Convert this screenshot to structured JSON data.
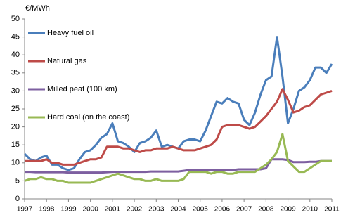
{
  "chart_data": {
    "type": "line",
    "y_label": "€/MWh",
    "x": [
      1997,
      1997.25,
      1997.5,
      1997.75,
      1998,
      1998.25,
      1998.5,
      1998.75,
      1999,
      1999.25,
      1999.5,
      1999.75,
      2000,
      2000.25,
      2000.5,
      2000.75,
      2001,
      2001.25,
      2001.5,
      2001.75,
      2002,
      2002.25,
      2002.5,
      2002.75,
      2003,
      2003.25,
      2003.5,
      2003.75,
      2004,
      2004.25,
      2004.5,
      2004.75,
      2005,
      2005.25,
      2005.5,
      2005.75,
      2006,
      2006.25,
      2006.5,
      2006.75,
      2007,
      2007.25,
      2007.5,
      2007.75,
      2008,
      2008.25,
      2008.5,
      2008.75,
      2009,
      2009.25,
      2009.5,
      2009.75,
      2010,
      2010.25,
      2010.5,
      2010.75,
      2011
    ],
    "series": [
      {
        "name": "Heavy fuel oil",
        "color": "#4a7ebb",
        "values": [
          12.5,
          11,
          10.5,
          11.5,
          12,
          9.5,
          9.5,
          8.5,
          8,
          8.5,
          11,
          13,
          13.5,
          15,
          17,
          18,
          21,
          16,
          15.5,
          14.5,
          13,
          15.5,
          16,
          17,
          19,
          14.5,
          15,
          14.5,
          14,
          16,
          16.5,
          16.5,
          16,
          19,
          23,
          27,
          26.5,
          28,
          27,
          26.5,
          22,
          20.5,
          24,
          29,
          33,
          34,
          45,
          34,
          21,
          25,
          30,
          31,
          33,
          36.5,
          36.5,
          35,
          37.5
        ]
      },
      {
        "name": "Natural gas",
        "color": "#be4b48",
        "values": [
          10.5,
          10.5,
          10.5,
          10.5,
          11,
          10,
          10,
          9.5,
          9.5,
          9.5,
          10,
          10.5,
          11,
          11,
          11.5,
          14.5,
          14.5,
          14.5,
          14,
          14,
          13.5,
          13,
          13.5,
          13.5,
          14,
          14,
          14,
          14.5,
          14,
          13.5,
          13.5,
          13.5,
          14,
          14.5,
          15,
          16.5,
          20,
          20.5,
          20.5,
          20.5,
          20,
          19.5,
          20,
          21.5,
          23,
          25,
          27,
          30.5,
          27.5,
          24,
          24.5,
          25.5,
          26,
          27.5,
          29,
          29.5,
          30
        ]
      },
      {
        "name": "Milled peat (100 km)",
        "color": "#7d5fa0",
        "values": [
          7.5,
          7.5,
          7.4,
          7.4,
          7.4,
          7.4,
          7.4,
          7.4,
          7.3,
          7.3,
          7.3,
          7.3,
          7.3,
          7.3,
          7.3,
          7.4,
          7.5,
          7.5,
          7.5,
          7.5,
          7.5,
          7.5,
          7.5,
          7.6,
          7.6,
          7.6,
          7.6,
          7.6,
          7.6,
          7.8,
          8,
          8,
          8,
          8,
          8,
          8,
          8,
          8,
          8,
          8.2,
          8.2,
          8.2,
          8.2,
          8.2,
          8.5,
          11,
          11,
          11,
          10.8,
          10.2,
          10.2,
          10.2,
          10.3,
          10.3,
          10.5,
          10.5,
          10.5
        ]
      },
      {
        "name": "Hard coal (on the coast)",
        "color": "#98b954",
        "values": [
          5,
          5.5,
          5.5,
          6,
          5.5,
          5.5,
          5,
          5,
          4.5,
          4.5,
          4.5,
          4.5,
          4.5,
          5,
          5.5,
          6,
          6.5,
          7,
          6.5,
          6,
          5.5,
          5.5,
          5,
          5,
          5.5,
          5,
          5,
          5,
          5,
          5.5,
          7.5,
          7.5,
          7.5,
          7.5,
          7,
          7.5,
          7.5,
          7,
          7,
          7.5,
          7.5,
          7.5,
          7.5,
          8.5,
          9.5,
          11,
          13,
          18,
          10.5,
          9,
          7.5,
          7.5,
          8.5,
          9.5,
          10.5,
          10.5,
          10.5
        ]
      }
    ],
    "xlim": [
      1997,
      2011
    ],
    "xticks": [
      1997,
      1998,
      1999,
      2000,
      2001,
      2002,
      2003,
      2004,
      2005,
      2006,
      2007,
      2008,
      2009,
      2010,
      2011
    ],
    "ylim": [
      0,
      50
    ],
    "yticks": [
      0,
      5,
      10,
      15,
      20,
      25,
      30,
      35,
      40,
      45,
      50
    ],
    "legend": "upper-left"
  }
}
